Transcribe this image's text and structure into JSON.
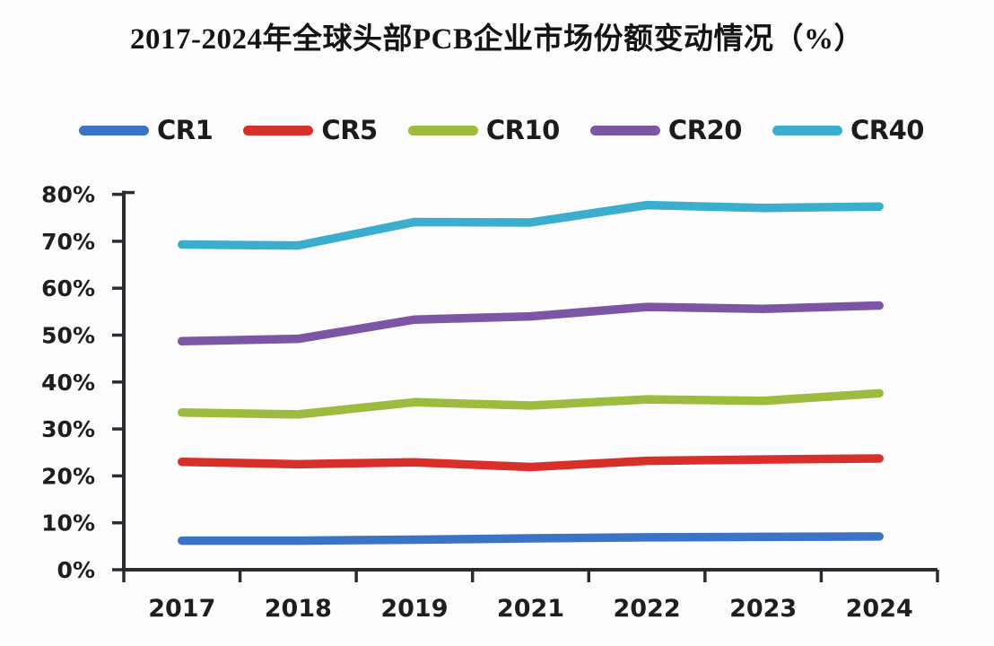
{
  "title": "2017-2024年全球头部PCB企业市场份额变动情况（%）",
  "colors": {
    "axis": "#2b2b33",
    "label_text": "#1e1e1e",
    "background": "#fdfdfe"
  },
  "legend": {
    "items": [
      "CR1",
      "CR5",
      "CR10",
      "CR20",
      "CR40"
    ]
  },
  "chart_data": {
    "type": "line",
    "title": "2017-2024年全球头部PCB企业市场份额变动情况（%）",
    "categories": [
      "2017",
      "2018",
      "2019",
      "2021",
      "2022",
      "2023",
      "2024"
    ],
    "series": [
      {
        "name": "CR1",
        "color": "#3b74c5",
        "values": [
          6.2,
          6.2,
          6.4,
          6.7,
          6.9,
          7.0,
          7.1
        ]
      },
      {
        "name": "CR5",
        "color": "#d7302b",
        "values": [
          23.0,
          22.5,
          22.9,
          21.9,
          23.2,
          23.5,
          23.7
        ]
      },
      {
        "name": "CR10",
        "color": "#9cbb3f",
        "values": [
          33.5,
          33.1,
          35.7,
          35.0,
          36.3,
          36.0,
          37.6
        ]
      },
      {
        "name": "CR20",
        "color": "#7c56a5",
        "values": [
          48.7,
          49.2,
          53.3,
          54.0,
          56.0,
          55.6,
          56.3
        ]
      },
      {
        "name": "CR40",
        "color": "#3baece",
        "values": [
          69.3,
          69.1,
          74.1,
          74.0,
          77.7,
          77.1,
          77.4
        ]
      }
    ],
    "xlabel": "",
    "ylabel": "",
    "ylim": [
      0,
      80
    ],
    "ytick_interval": 10,
    "ytick_labels": [
      "0%",
      "10%",
      "20%",
      "30%",
      "40%",
      "50%",
      "60%",
      "70%",
      "80%"
    ],
    "grid": false,
    "legend_position": "top"
  }
}
